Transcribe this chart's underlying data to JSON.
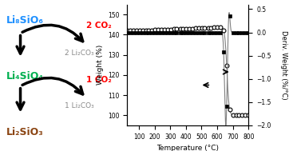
{
  "left_panel": {
    "li8sio6_label": "Li₈SiO₆",
    "li4sio4_label": "Li₄SiO₄",
    "li2sio3_label": "Li₂SiO₃",
    "co2_label_1": "2 CO₂",
    "co2_label_2": "1 CO₂",
    "li2co3_label_1": "2 Li₂CO₃",
    "li2co3_label_2": "1 Li₂CO₃",
    "li8sio6_color": "#1E90FF",
    "li4sio4_color": "#00B050",
    "li2sio3_color": "#8B4513",
    "co2_color": "#FF0000",
    "arrow_color": "#000000",
    "product_color": "#888888"
  },
  "right_panel": {
    "temp_min": 25,
    "temp_max": 800,
    "weight_min": 95,
    "weight_max": 155,
    "deriv_min": -2.0,
    "deriv_max": 0.6,
    "xlabel": "Temperature (°C)",
    "ylabel_left": "Weight (%)",
    "ylabel_right": "Deriv. Weight (%/°C)"
  }
}
